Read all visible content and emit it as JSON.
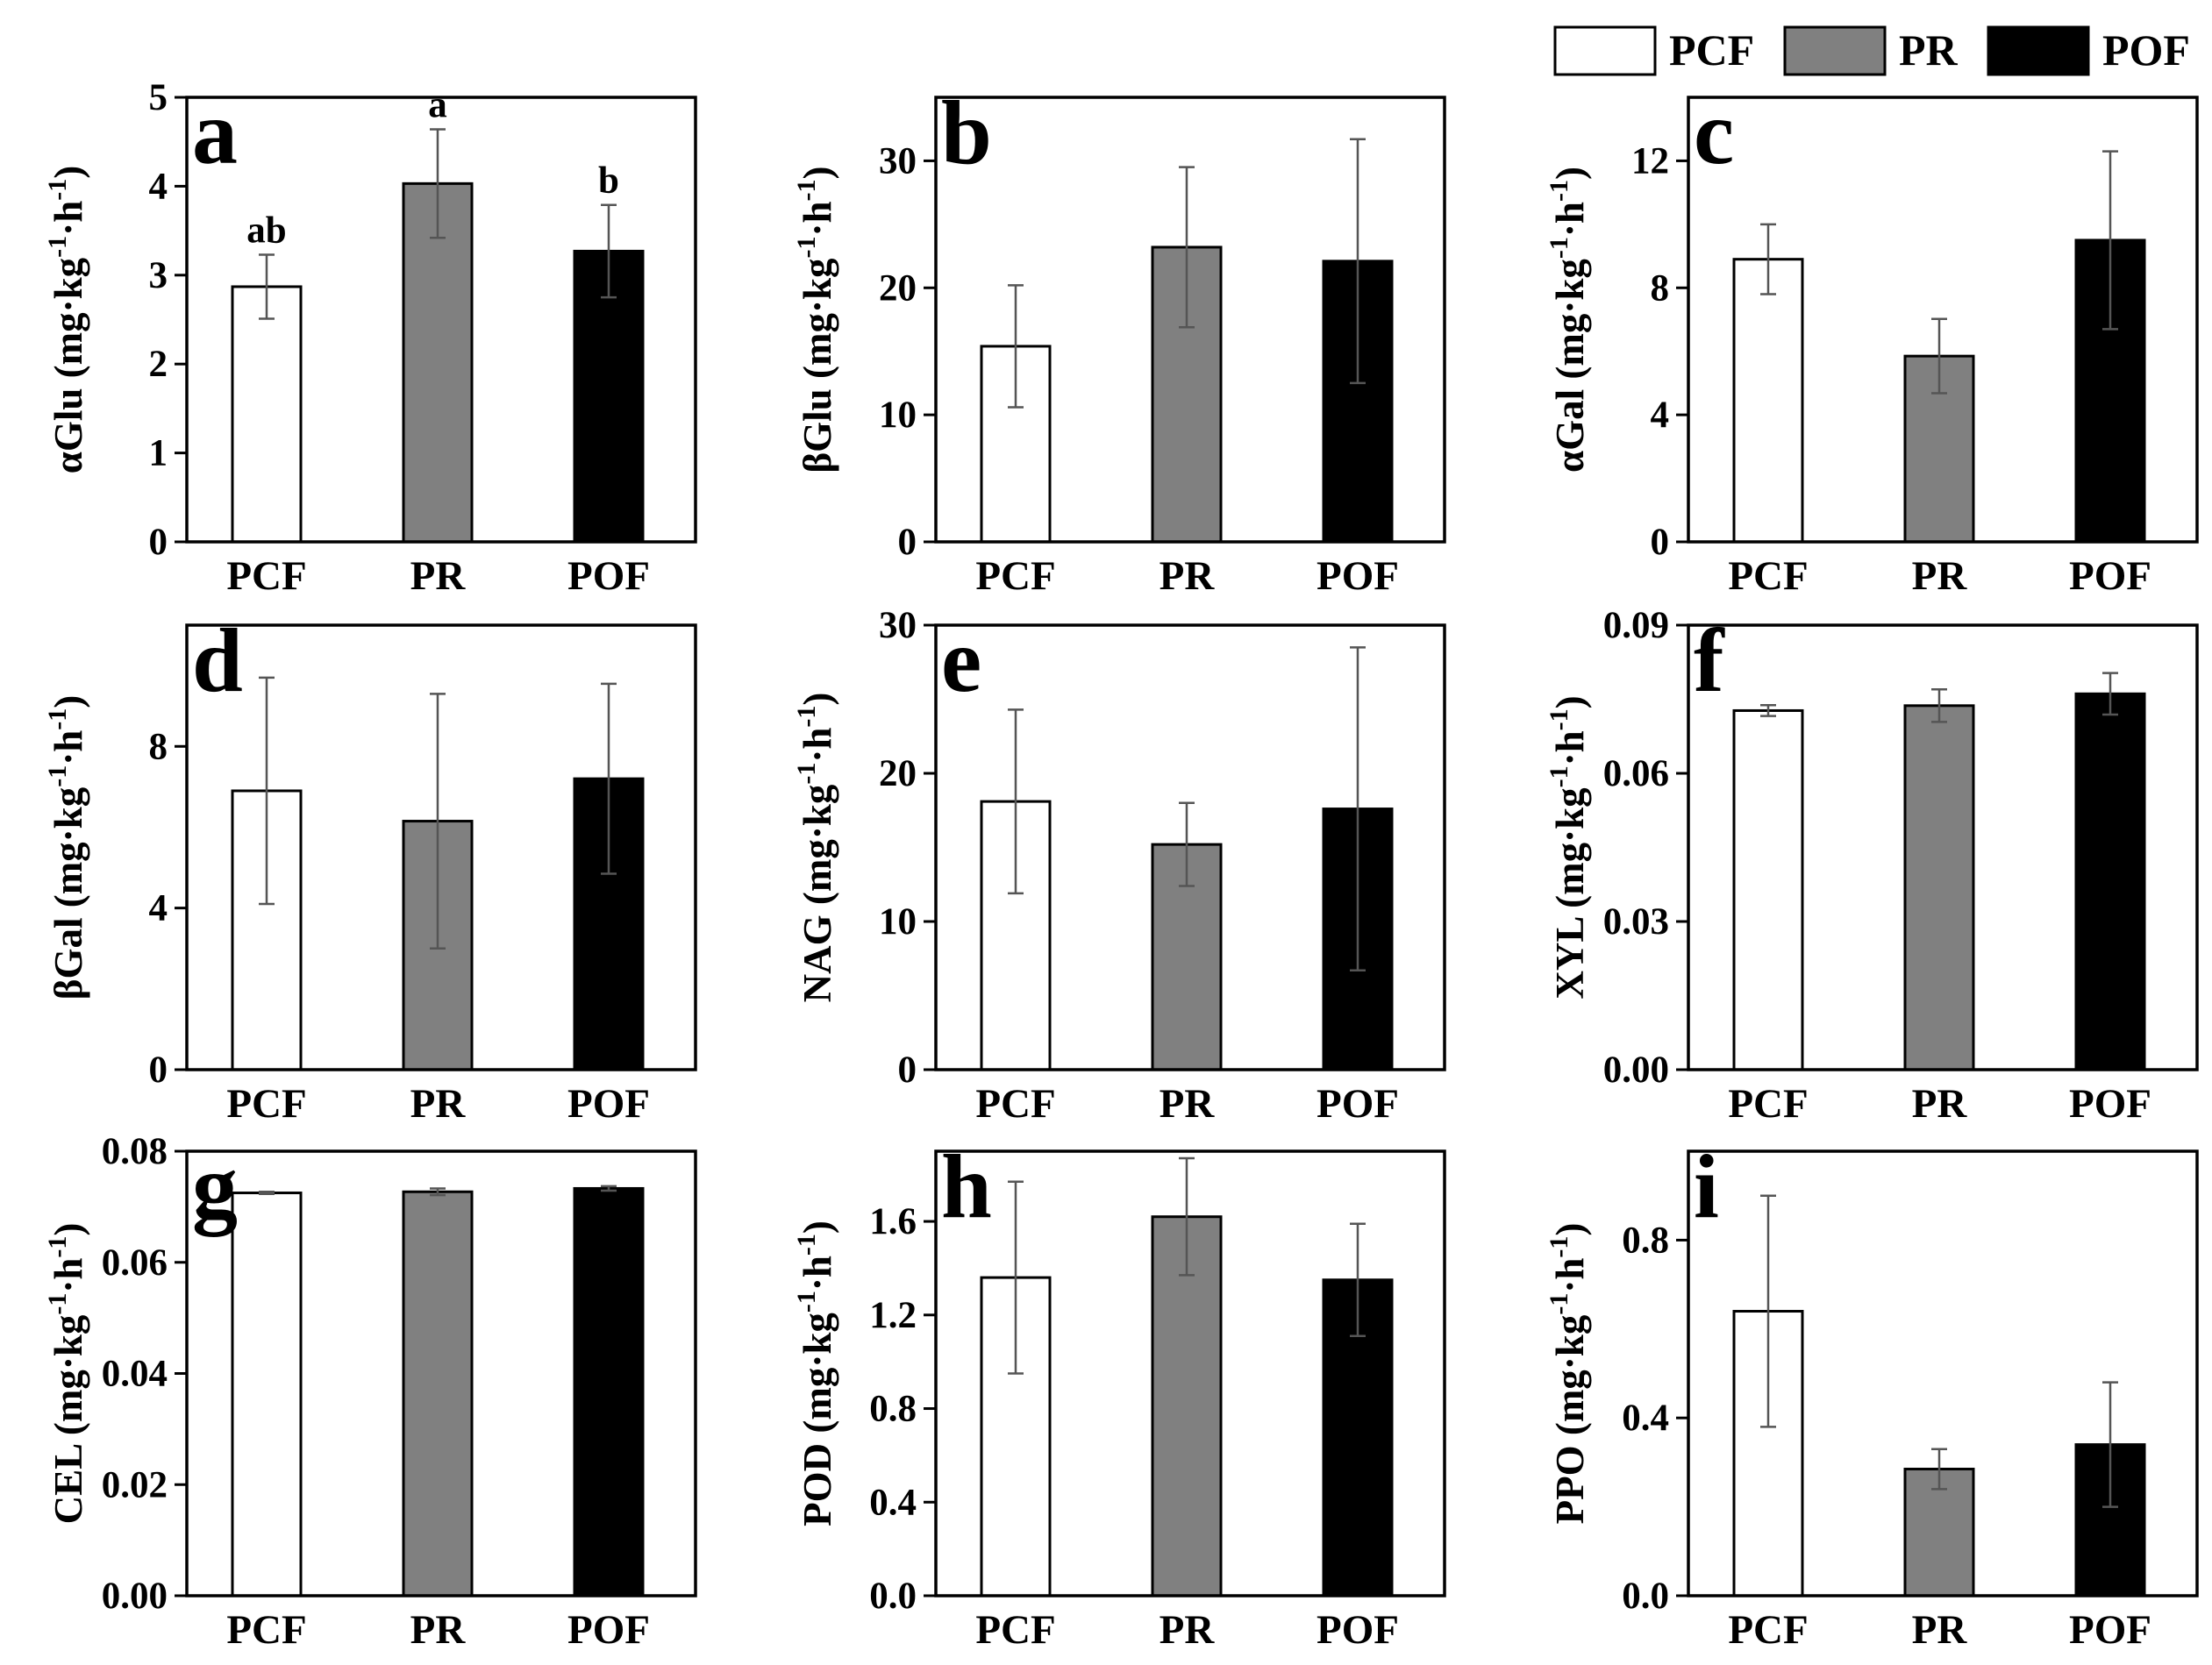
{
  "legend": [
    {
      "name": "PCF",
      "color": "#ffffff"
    },
    {
      "name": "PR",
      "color": "#808080"
    },
    {
      "name": "POF",
      "color": "#000000"
    }
  ],
  "chart_data": [
    {
      "type": "bar",
      "panel": "a",
      "ylabel": "αGlu (mg·kg-1·h-1)",
      "ylabel_main": "αGlu",
      "categories": [
        "PCF",
        "PR",
        "POF"
      ],
      "values": [
        2.87,
        4.03,
        3.27
      ],
      "errors": [
        0.36,
        0.61,
        0.52
      ],
      "ylim": [
        0,
        5
      ],
      "yticks": [
        "0",
        "1",
        "2",
        "3",
        "4",
        "5"
      ],
      "significance": [
        "ab",
        "a",
        "b"
      ]
    },
    {
      "type": "bar",
      "panel": "b",
      "ylabel": "βGlu (mg·kg-1·h-1)",
      "ylabel_main": "βGlu",
      "categories": [
        "PCF",
        "PR",
        "POF"
      ],
      "values": [
        15.4,
        23.2,
        22.1
      ],
      "errors": [
        4.8,
        6.3,
        9.6
      ],
      "ylim": [
        0,
        35
      ],
      "yticks": [
        "0",
        "10",
        "20",
        "30"
      ]
    },
    {
      "type": "bar",
      "panel": "c",
      "ylabel": "αGal (mg·kg-1·h-1)",
      "ylabel_main": "αGal",
      "categories": [
        "PCF",
        "PR",
        "POF"
      ],
      "values": [
        8.9,
        5.85,
        9.5
      ],
      "errors": [
        1.1,
        1.17,
        2.8
      ],
      "ylim": [
        0,
        14
      ],
      "yticks": [
        "0",
        "4",
        "8",
        "12"
      ]
    },
    {
      "type": "bar",
      "panel": "d",
      "ylabel": "βGal (mg·kg-1·h-1)",
      "ylabel_main": "βGal",
      "categories": [
        "PCF",
        "PR",
        "POF"
      ],
      "values": [
        6.9,
        6.15,
        7.2
      ],
      "errors": [
        2.8,
        3.15,
        2.35
      ],
      "ylim": [
        0,
        11
      ],
      "yticks": [
        "0",
        "4",
        "8"
      ]
    },
    {
      "type": "bar",
      "panel": "e",
      "ylabel": "NAG (mg·kg-1·h-1)",
      "ylabel_main": "NAG",
      "categories": [
        "PCF",
        "PR",
        "POF"
      ],
      "values": [
        18.1,
        15.2,
        17.6
      ],
      "errors": [
        6.2,
        2.8,
        10.9
      ],
      "ylim": [
        0,
        30
      ],
      "yticks": [
        "0",
        "10",
        "20",
        "30"
      ]
    },
    {
      "type": "bar",
      "panel": "f",
      "ylabel": "XYL (mg·kg-1·h-1)",
      "ylabel_main": "XYL",
      "categories": [
        "PCF",
        "PR",
        "POF"
      ],
      "values": [
        0.0727,
        0.0737,
        0.0761
      ],
      "errors": [
        0.0011,
        0.0033,
        0.0042
      ],
      "ylim": [
        0,
        0.09
      ],
      "yticks": [
        "0.00",
        "0.03",
        "0.06",
        "0.09"
      ]
    },
    {
      "type": "bar",
      "panel": "g",
      "ylabel": "CEL (mg·kg-1·h-1)",
      "ylabel_main": "CEL",
      "categories": [
        "PCF",
        "PR",
        "POF"
      ],
      "values": [
        0.0725,
        0.0727,
        0.0733
      ],
      "errors": [
        0.0002,
        0.0006,
        0.0004
      ],
      "ylim": [
        0,
        0.08
      ],
      "yticks": [
        "0.00",
        "0.02",
        "0.04",
        "0.06",
        "0.08"
      ]
    },
    {
      "type": "bar",
      "panel": "h",
      "ylabel": "POD (mg·kg-1·h-1)",
      "ylabel_main": "POD",
      "categories": [
        "PCF",
        "PR",
        "POF"
      ],
      "values": [
        1.36,
        1.62,
        1.35
      ],
      "errors": [
        0.41,
        0.25,
        0.24
      ],
      "ylim": [
        0,
        1.9
      ],
      "yticks": [
        "0.0",
        "0.4",
        "0.8",
        "1.2",
        "1.6"
      ]
    },
    {
      "type": "bar",
      "panel": "i",
      "ylabel": "PPO (mg·kg-1·h-1)",
      "ylabel_main": "PPO",
      "categories": [
        "PCF",
        "PR",
        "POF"
      ],
      "values": [
        0.64,
        0.285,
        0.34
      ],
      "errors": [
        0.26,
        0.045,
        0.14
      ],
      "ylim": [
        0,
        1.0
      ],
      "yticks": [
        "0.0",
        "0.4",
        "0.8"
      ]
    }
  ]
}
